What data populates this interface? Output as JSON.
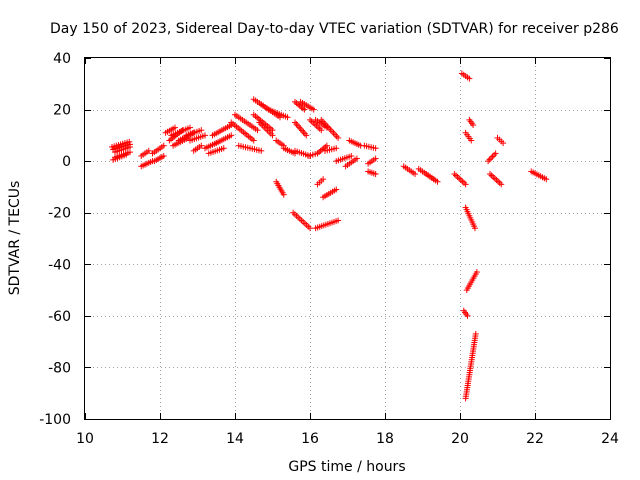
{
  "chart_data": {
    "type": "scatter",
    "title": "Day 150 of 2023, Sidereal Day-to-day VTEC variation (SDTVAR) for receiver p286",
    "xlabel": "GPS time / hours",
    "ylabel": "SDTVAR / TECUs",
    "xlim": [
      10,
      24
    ],
    "ylim": [
      -100,
      40
    ],
    "xticks": [
      "10",
      "12",
      "14",
      "16",
      "18",
      "20",
      "22",
      "24"
    ],
    "yticks": [
      "40",
      "20",
      "0",
      "-20",
      "-40",
      "-60",
      "-80",
      "-100"
    ],
    "grid": true,
    "marker": "+",
    "color": "#ff0000",
    "series": [
      {
        "name": "SDTVAR",
        "segments": [
          [
            10.72,
            11.18,
            5.5,
            7.5
          ],
          [
            10.75,
            11.2,
            4.5,
            6.5
          ],
          [
            10.8,
            11.2,
            3.5,
            5.5
          ],
          [
            10.8,
            11.2,
            1.5,
            3.5
          ],
          [
            10.75,
            11.1,
            0.5,
            2.5
          ],
          [
            11.5,
            11.7,
            2,
            4
          ],
          [
            11.5,
            11.8,
            -2,
            0
          ],
          [
            11.8,
            12.1,
            3,
            6
          ],
          [
            11.85,
            12.1,
            0,
            2
          ],
          [
            12.15,
            12.4,
            11,
            13
          ],
          [
            12.25,
            12.6,
            8,
            12
          ],
          [
            12.3,
            12.8,
            10,
            13
          ],
          [
            12.35,
            12.75,
            6,
            9
          ],
          [
            12.5,
            12.9,
            8,
            11
          ],
          [
            12.7,
            13.1,
            10,
            12
          ],
          [
            12.8,
            13.2,
            8,
            10
          ],
          [
            12.9,
            13.1,
            4,
            6
          ],
          [
            13.2,
            13.5,
            5,
            7
          ],
          [
            13.3,
            13.7,
            3,
            5
          ],
          [
            13.4,
            13.9,
            10,
            14
          ],
          [
            13.5,
            13.9,
            7,
            10
          ],
          [
            13.9,
            14.5,
            15,
            8
          ],
          [
            14.0,
            14.6,
            18,
            12
          ],
          [
            14.1,
            14.7,
            6,
            4
          ],
          [
            14.5,
            14.9,
            24,
            20
          ],
          [
            14.5,
            15.0,
            18,
            12
          ],
          [
            14.65,
            15.0,
            15,
            10
          ],
          [
            14.7,
            15.2,
            22,
            17
          ],
          [
            14.9,
            15.4,
            20,
            17
          ],
          [
            15.1,
            15.3,
            8,
            6
          ],
          [
            15.1,
            15.3,
            -8,
            -13
          ],
          [
            15.3,
            15.6,
            5,
            3
          ],
          [
            15.6,
            16.0,
            4,
            2
          ],
          [
            15.6,
            15.9,
            15,
            10
          ],
          [
            15.6,
            15.85,
            23,
            20
          ],
          [
            15.75,
            16.1,
            23,
            20
          ],
          [
            15.55,
            16.0,
            -20,
            -26
          ],
          [
            15.95,
            16.2,
            2,
            3
          ],
          [
            16.0,
            16.3,
            16,
            12
          ],
          [
            16.15,
            16.45,
            16,
            13
          ],
          [
            16.2,
            16.35,
            -9,
            -7
          ],
          [
            16.2,
            16.45,
            3,
            6
          ],
          [
            16.3,
            16.75,
            16,
            9
          ],
          [
            16.15,
            16.75,
            -26,
            -23
          ],
          [
            16.35,
            16.7,
            -14,
            -11
          ],
          [
            16.4,
            16.7,
            4,
            5
          ],
          [
            16.7,
            17.1,
            0,
            2
          ],
          [
            16.95,
            17.25,
            -2,
            1
          ],
          [
            17.05,
            17.35,
            8,
            6
          ],
          [
            17.45,
            17.75,
            6,
            5
          ],
          [
            17.55,
            17.75,
            -1,
            1
          ],
          [
            17.55,
            17.75,
            -4,
            -5
          ],
          [
            18.5,
            18.8,
            -2,
            -5
          ],
          [
            18.9,
            19.3,
            -3,
            -7
          ],
          [
            19.1,
            19.4,
            -5,
            -8
          ],
          [
            19.85,
            20.15,
            -5,
            -9
          ],
          [
            20.05,
            20.25,
            34,
            32
          ],
          [
            20.15,
            20.3,
            11,
            8
          ],
          [
            20.25,
            20.35,
            16,
            14
          ],
          [
            20.15,
            20.4,
            -18,
            -26
          ],
          [
            20.18,
            20.45,
            -50,
            -43
          ],
          [
            20.1,
            20.2,
            -58,
            -60
          ],
          [
            20.15,
            20.42,
            -92,
            -67
          ],
          [
            20.75,
            20.95,
            0,
            3
          ],
          [
            20.8,
            21.1,
            -5,
            -9
          ],
          [
            21.0,
            21.15,
            9,
            7
          ],
          [
            21.9,
            22.3,
            -4,
            -7
          ]
        ]
      }
    ]
  }
}
